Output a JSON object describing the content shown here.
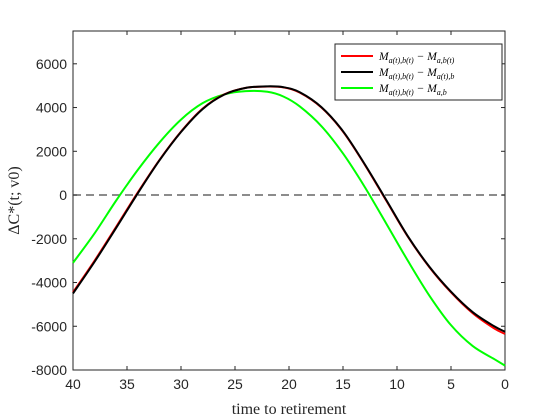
{
  "chart_data": {
    "type": "line",
    "xlabel": "time to retirement",
    "ylabel": "ΔC*(t; v0)",
    "xlim": [
      40,
      0
    ],
    "ylim": [
      -8000,
      7500
    ],
    "x_reversed": true,
    "xticks": [
      40,
      35,
      30,
      25,
      20,
      15,
      10,
      5,
      0
    ],
    "yticks": [
      -8000,
      -6000,
      -4000,
      -2000,
      0,
      2000,
      4000,
      6000
    ],
    "xtick_labels": [
      "40",
      "35",
      "30",
      "25",
      "20",
      "15",
      "10",
      "5",
      "0"
    ],
    "ytick_labels": [
      "-8000",
      "-6000",
      "-4000",
      "-2000",
      "0",
      "2000",
      "4000",
      "6000"
    ],
    "grid": false,
    "legend_position": "top-right",
    "reference_line": {
      "y": 0,
      "style": "dashed",
      "color": "#666666"
    },
    "x": [
      40,
      38,
      36,
      34,
      32,
      30,
      28,
      26,
      24,
      22,
      20.5,
      19,
      17,
      15,
      13,
      11,
      9,
      7,
      5,
      3,
      1,
      0
    ],
    "series": [
      {
        "name": "M_{a(t),b(t)} − M_{a,b(t)}",
        "color": "#ff0000",
        "values": [
          -4450,
          -3000,
          -1450,
          120,
          1600,
          2900,
          3950,
          4600,
          4900,
          4960,
          4920,
          4680,
          4000,
          2900,
          1400,
          -250,
          -1900,
          -3300,
          -4450,
          -5400,
          -6100,
          -6350
        ]
      },
      {
        "name": "M_{a(t),b(t)} − M_{a(t),b}",
        "color": "#000000",
        "values": [
          -4500,
          -3050,
          -1500,
          80,
          1580,
          2880,
          3930,
          4590,
          4900,
          4970,
          4930,
          4700,
          4020,
          2920,
          1420,
          -220,
          -1880,
          -3280,
          -4420,
          -5350,
          -6000,
          -6250
        ]
      },
      {
        "name": "M_{a(t),b(t)} − M_{a,b}",
        "color": "#00ff00",
        "values": [
          -3100,
          -1750,
          -250,
          1150,
          2400,
          3450,
          4200,
          4600,
          4750,
          4720,
          4500,
          4050,
          3150,
          1900,
          380,
          -1300,
          -3000,
          -4600,
          -5950,
          -6900,
          -7500,
          -7800
        ]
      }
    ],
    "legend": {
      "entries": [
        {
          "main": "M",
          "sub1": "a(t),b(t)",
          "op": " − M",
          "sub2": "a,b(t)"
        },
        {
          "main": "M",
          "sub1": "a(t),b(t)",
          "op": " − M",
          "sub2": "a(t),b"
        },
        {
          "main": "M",
          "sub1": "a(t),b(t)",
          "op": " − M",
          "sub2": "a,b"
        }
      ]
    }
  }
}
